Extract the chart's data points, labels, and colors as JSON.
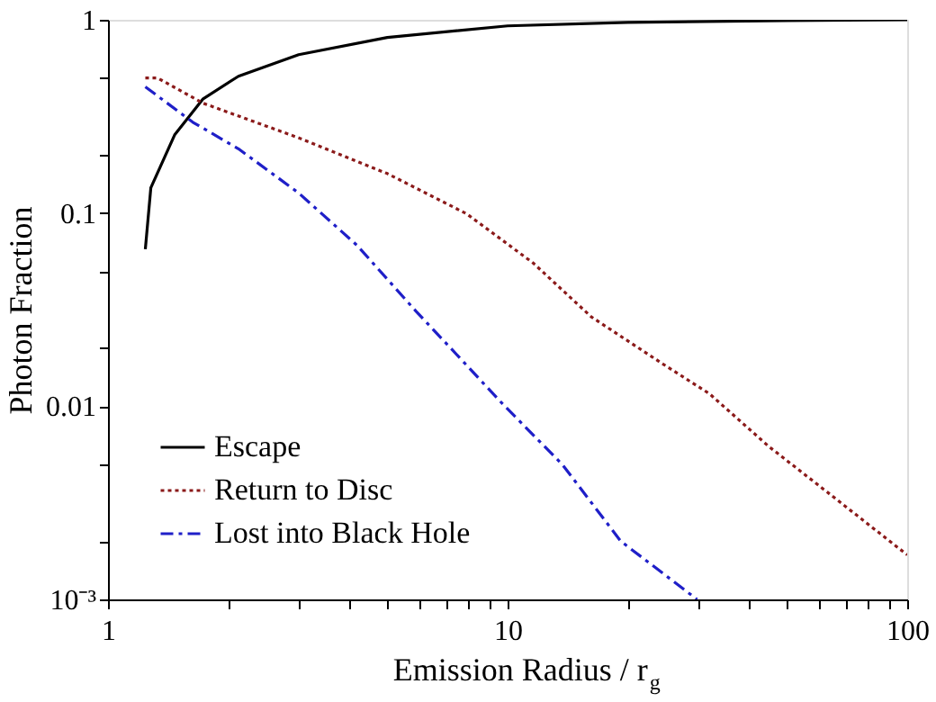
{
  "chart_data": {
    "type": "line",
    "xlabel": "Emission Radius / r$_{g}$",
    "ylabel": "Photon Fraction",
    "log": "xy",
    "grid": false,
    "legend": "bottom left",
    "xlim": [
      1,
      100
    ],
    "ylim": [
      0.001,
      1
    ],
    "xticks": [
      1,
      {
        "value": 2,
        "label": null
      },
      {
        "value": 3,
        "label": null
      },
      {
        "value": 4,
        "label": null
      },
      {
        "value": 5,
        "label": null
      },
      {
        "value": 6,
        "label": null
      },
      {
        "value": 7,
        "label": null
      },
      {
        "value": 8,
        "label": null
      },
      {
        "value": 9,
        "label": null
      },
      10,
      {
        "value": 20,
        "label": null
      },
      {
        "value": 30,
        "label": null
      },
      {
        "value": 40,
        "label": null
      },
      {
        "value": 50,
        "label": null
      },
      {
        "value": 60,
        "label": null
      },
      {
        "value": 70,
        "label": null
      },
      {
        "value": 80,
        "label": null
      },
      {
        "value": 90,
        "label": null
      },
      100
    ],
    "yticks": [
      {
        "value": 0.001,
        "label": "10⁻³"
      },
      {
        "value": 0.002,
        "label": null
      },
      {
        "value": 0.005,
        "label": null
      },
      0.01,
      {
        "value": 0.02,
        "label": null
      },
      {
        "value": 0.05,
        "label": null
      },
      0.1,
      {
        "value": 0.2,
        "label": null
      },
      {
        "value": 0.5,
        "label": null
      },
      1
    ],
    "series": [
      {
        "name": "Escape",
        "color": "#000000",
        "line_style": "solid",
        "x": [
          1.24,
          1.28,
          1.47,
          1.73,
          2.12,
          3.0,
          5.0,
          10,
          20,
          50,
          100
        ],
        "values": [
          0.065,
          0.135,
          0.255,
          0.39,
          0.51,
          0.66,
          0.81,
          0.93,
          0.97,
          0.99,
          1.0
        ]
      },
      {
        "name": "Return to Disc",
        "color": "#8b1a1a",
        "line_style": "dotted",
        "x": [
          1.24,
          1.33,
          1.73,
          3.0,
          5.0,
          7.9,
          11.6,
          16.2,
          24.4,
          32,
          45,
          63,
          100
        ],
        "values": [
          0.5,
          0.5,
          0.37,
          0.245,
          0.16,
          0.099,
          0.055,
          0.029,
          0.0166,
          0.0116,
          0.0062,
          0.0036,
          0.0017
        ]
      },
      {
        "name": "Lost into Black Hole",
        "color": "#1f1fc8",
        "line_style": "dashed",
        "x": [
          1.24,
          1.63,
          2.12,
          3.0,
          4.2,
          5.9,
          7.2,
          9.75,
          13.7,
          19.2,
          29.8
        ],
        "values": [
          0.45,
          0.295,
          0.215,
          0.127,
          0.068,
          0.031,
          0.02,
          0.0102,
          0.005,
          0.002,
          0.001
        ]
      }
    ]
  }
}
